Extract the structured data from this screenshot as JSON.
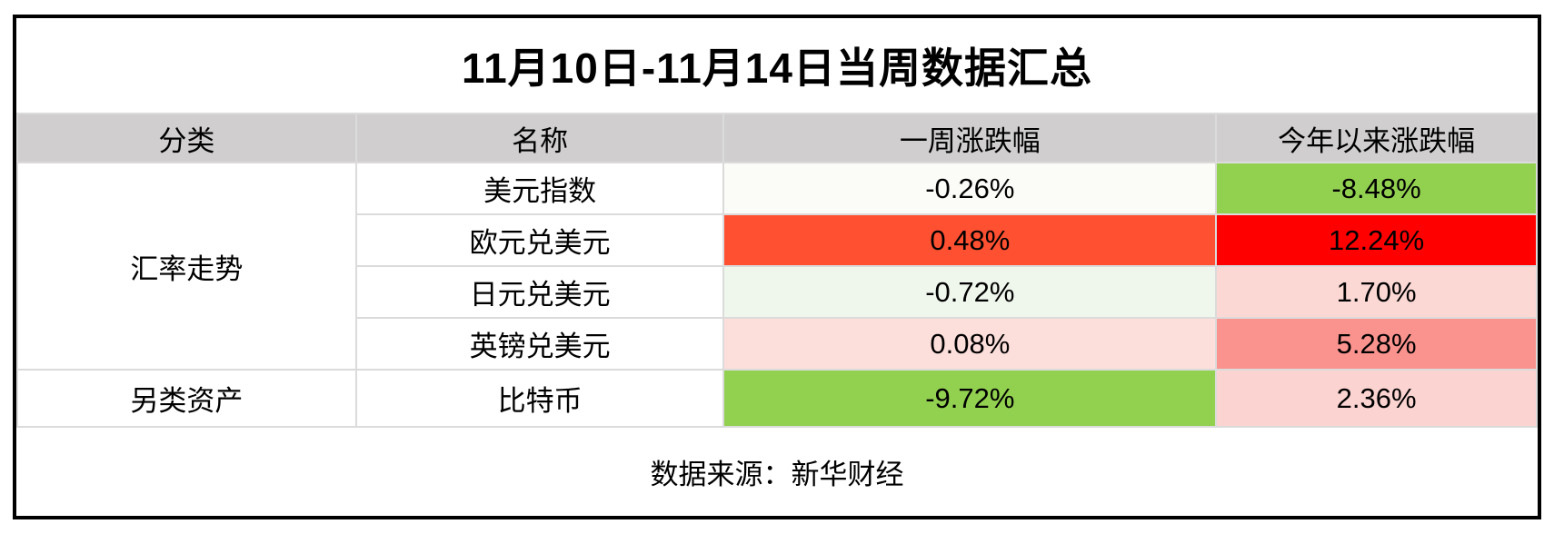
{
  "title": "11月10日-11月14日当周数据汇总",
  "columns": {
    "category": "分类",
    "name": "名称",
    "week": "一周涨跌幅",
    "ytd": "今年以来涨跌幅"
  },
  "rows": [
    {
      "category": "汇率走势",
      "name": "美元指数",
      "week": "-0.26%",
      "week_bg": "#FBFBF7",
      "ytd": "-8.48%",
      "ytd_bg": "#92D050"
    },
    {
      "name": "欧元兑美元",
      "week": "0.48%",
      "week_bg": "#FF5031",
      "ytd": "12.24%",
      "ytd_bg": "#FF0000"
    },
    {
      "name": "日元兑美元",
      "week": "-0.72%",
      "week_bg": "#EFF6EC",
      "ytd": "1.70%",
      "ytd_bg": "#FBD8D4"
    },
    {
      "name": "英镑兑美元",
      "week": "0.08%",
      "week_bg": "#FCDEDA",
      "ytd": "5.28%",
      "ytd_bg": "#FA938E"
    },
    {
      "category": "另类资产",
      "name": "比特币",
      "week": "-9.72%",
      "week_bg": "#92D050",
      "ytd": "2.36%",
      "ytd_bg": "#FBD3D0"
    }
  ],
  "footer": {
    "source": "数据来源：新华财经"
  },
  "colors": {
    "frame_border": "#000000",
    "header_gray": "#D0CECE",
    "grid_line": "#DCDBDB",
    "strong_green": "#92D050",
    "strong_red": "#FF0000",
    "orange_red": "#FF5031",
    "salmon": "#FA938E",
    "light_pink": "#FBD8D4",
    "light_green": "#EFF6EC"
  },
  "chart_data": {
    "type": "table",
    "title": "11月10日-11月14日当周数据汇总",
    "columns": [
      "分类",
      "名称",
      "一周涨跌幅",
      "今年以来涨跌幅"
    ],
    "rows": [
      [
        "汇率走势",
        "美元指数",
        "-0.26%",
        "-8.48%"
      ],
      [
        "汇率走势",
        "欧元兑美元",
        "0.48%",
        "12.24%"
      ],
      [
        "汇率走势",
        "日元兑美元",
        "-0.72%",
        "1.70%"
      ],
      [
        "汇率走势",
        "英镑兑美元",
        "0.08%",
        "5.28%"
      ],
      [
        "另类资产",
        "比特币",
        "-9.72%",
        "2.36%"
      ]
    ],
    "series": [
      {
        "name": "一周涨跌幅",
        "values": [
          -0.26,
          0.48,
          -0.72,
          0.08,
          -9.72
        ]
      },
      {
        "name": "今年以来涨跌幅",
        "values": [
          -8.48,
          12.24,
          1.7,
          5.28,
          2.36
        ]
      }
    ],
    "categories": [
      "美元指数",
      "欧元兑美元",
      "日元兑美元",
      "英镑兑美元",
      "比特币"
    ],
    "legend_position": "none",
    "grid": true,
    "annotations": [
      "数据来源：新华财经"
    ]
  }
}
